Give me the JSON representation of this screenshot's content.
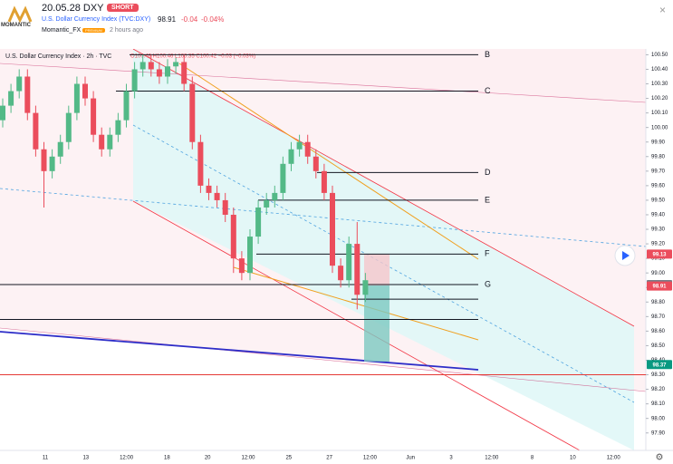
{
  "header": {
    "logo": "MOMANTIC",
    "title": "20.05.28 DXY",
    "badge": "SHORT",
    "symbol": "U.S. Dollar Currency Index (TVC:DXY)",
    "price": "98.91",
    "change": "-0.04",
    "change_pct": "-0.04%",
    "author": "Momantic_FX",
    "author_badge": "PREMIUM",
    "time": "2 hours ago"
  },
  "chart_data": {
    "type": "candlestick",
    "legend": "U.S. Dollar Currency Index · 2h · TVC",
    "ohlc_legend": "O100.46 H100.46 L100.35 C100.42 −0.03 (−0.03%)",
    "open": [
      100.05,
      100.15,
      100.25,
      100.35,
      100.1,
      99.85,
      99.7,
      99.8,
      99.9,
      100.1,
      100.3,
      100.2,
      99.95,
      99.85,
      99.95,
      100.05,
      100.25,
      100.4,
      100.45,
      100.4,
      100.35,
      100.42,
      100.45,
      100.3,
      99.9,
      99.6,
      99.55,
      99.5,
      99.4,
      99.1,
      99.0,
      99.25,
      99.45,
      99.5,
      99.55,
      99.75,
      99.85,
      99.9,
      99.8,
      99.7,
      99.55,
      99.05,
      98.95,
      99.2,
      98.85
    ],
    "high": [
      100.2,
      100.3,
      100.4,
      100.4,
      100.15,
      99.9,
      99.85,
      99.95,
      100.15,
      100.35,
      100.35,
      100.25,
      100.0,
      100.0,
      100.1,
      100.3,
      100.45,
      100.5,
      100.5,
      100.45,
      100.47,
      100.48,
      100.5,
      100.35,
      99.95,
      99.65,
      99.6,
      99.55,
      99.45,
      99.15,
      99.3,
      99.5,
      99.55,
      99.6,
      99.8,
      99.9,
      99.95,
      99.95,
      99.85,
      99.75,
      99.6,
      99.1,
      99.25,
      99.35,
      99.0
    ],
    "low": [
      100.0,
      100.1,
      100.2,
      100.05,
      99.8,
      99.45,
      99.65,
      99.75,
      99.85,
      100.05,
      100.15,
      99.9,
      99.8,
      99.8,
      99.9,
      100.0,
      100.2,
      100.35,
      100.35,
      100.3,
      100.3,
      100.37,
      100.25,
      99.85,
      99.55,
      99.5,
      99.45,
      99.35,
      99.0,
      98.95,
      98.95,
      99.2,
      99.4,
      99.45,
      99.5,
      99.7,
      99.8,
      99.75,
      99.65,
      99.5,
      99.0,
      98.9,
      98.9,
      98.75,
      98.8
    ],
    "close": [
      100.15,
      100.25,
      100.35,
      100.1,
      99.85,
      99.7,
      99.8,
      99.9,
      100.1,
      100.3,
      100.2,
      99.95,
      99.85,
      99.95,
      100.05,
      100.25,
      100.4,
      100.45,
      100.4,
      100.35,
      100.42,
      100.45,
      100.3,
      99.9,
      99.6,
      99.55,
      99.5,
      99.4,
      99.1,
      99.0,
      99.25,
      99.45,
      99.5,
      99.55,
      99.75,
      99.85,
      99.9,
      99.8,
      99.7,
      99.55,
      99.05,
      98.95,
      99.2,
      98.85,
      98.95
    ],
    "up_color": "#53b987",
    "down_color": "#eb4d5c",
    "ylim": [
      97.78,
      100.54
    ],
    "yticks": [
      {
        "value": 100.5,
        "label": "100.50"
      },
      {
        "value": 100.4,
        "label": "100.40"
      },
      {
        "value": 100.3,
        "label": "100.30"
      },
      {
        "value": 100.2,
        "label": "100.20"
      },
      {
        "value": 100.1,
        "label": "100.10"
      },
      {
        "value": 100,
        "label": "100.00"
      },
      {
        "value": 99.9,
        "label": "99.90"
      },
      {
        "value": 99.8,
        "label": "99.80"
      },
      {
        "value": 99.7,
        "label": "99.70"
      },
      {
        "value": 99.6,
        "label": "99.60"
      },
      {
        "value": 99.5,
        "label": "99.50"
      },
      {
        "value": 99.4,
        "label": "99.40"
      },
      {
        "value": 99.3,
        "label": "99.30"
      },
      {
        "value": 99.2,
        "label": "99.20"
      },
      {
        "value": 99.1,
        "label": "99.10"
      },
      {
        "value": 99,
        "label": "99.00"
      },
      {
        "value": 98.9,
        "label": "98.90"
      },
      {
        "value": 98.8,
        "label": "98.80"
      },
      {
        "value": 98.7,
        "label": "98.70"
      },
      {
        "value": 98.6,
        "label": "98.60"
      },
      {
        "value": 98.5,
        "label": "98.50"
      },
      {
        "value": 98.4,
        "label": "98.40"
      },
      {
        "value": 98.3,
        "label": "98.30"
      },
      {
        "value": 98.2,
        "label": "98.20"
      },
      {
        "value": 98.1,
        "label": "98.10"
      },
      {
        "value": 98,
        "label": "98.00"
      },
      {
        "value": 97.9,
        "label": "97.90"
      }
    ],
    "xticks": [
      "11",
      "13",
      "12:00",
      "18",
      "20",
      "12:00",
      "25",
      "27",
      "12:00",
      "Jun",
      "3",
      "12:00",
      "8",
      "10",
      "12:00"
    ],
    "levels": [
      {
        "label": "B",
        "value": 100.5
      },
      {
        "label": "C",
        "value": 100.25
      },
      {
        "label": "D",
        "value": 99.69
      },
      {
        "label": "E",
        "value": 99.5
      },
      {
        "label": "F",
        "value": 99.13
      },
      {
        "label": "G",
        "value": 98.92
      }
    ],
    "extra_levels": [
      98.82,
      98.68
    ],
    "red_level": 98.3,
    "price_tags": [
      {
        "value": 99.13,
        "color": "#eb4d5c"
      },
      {
        "value": 98.92,
        "color": "#787b86"
      },
      {
        "value": 98.91,
        "color": "#eb4d5c"
      },
      {
        "value": 98.37,
        "color": "#089981"
      }
    ]
  }
}
